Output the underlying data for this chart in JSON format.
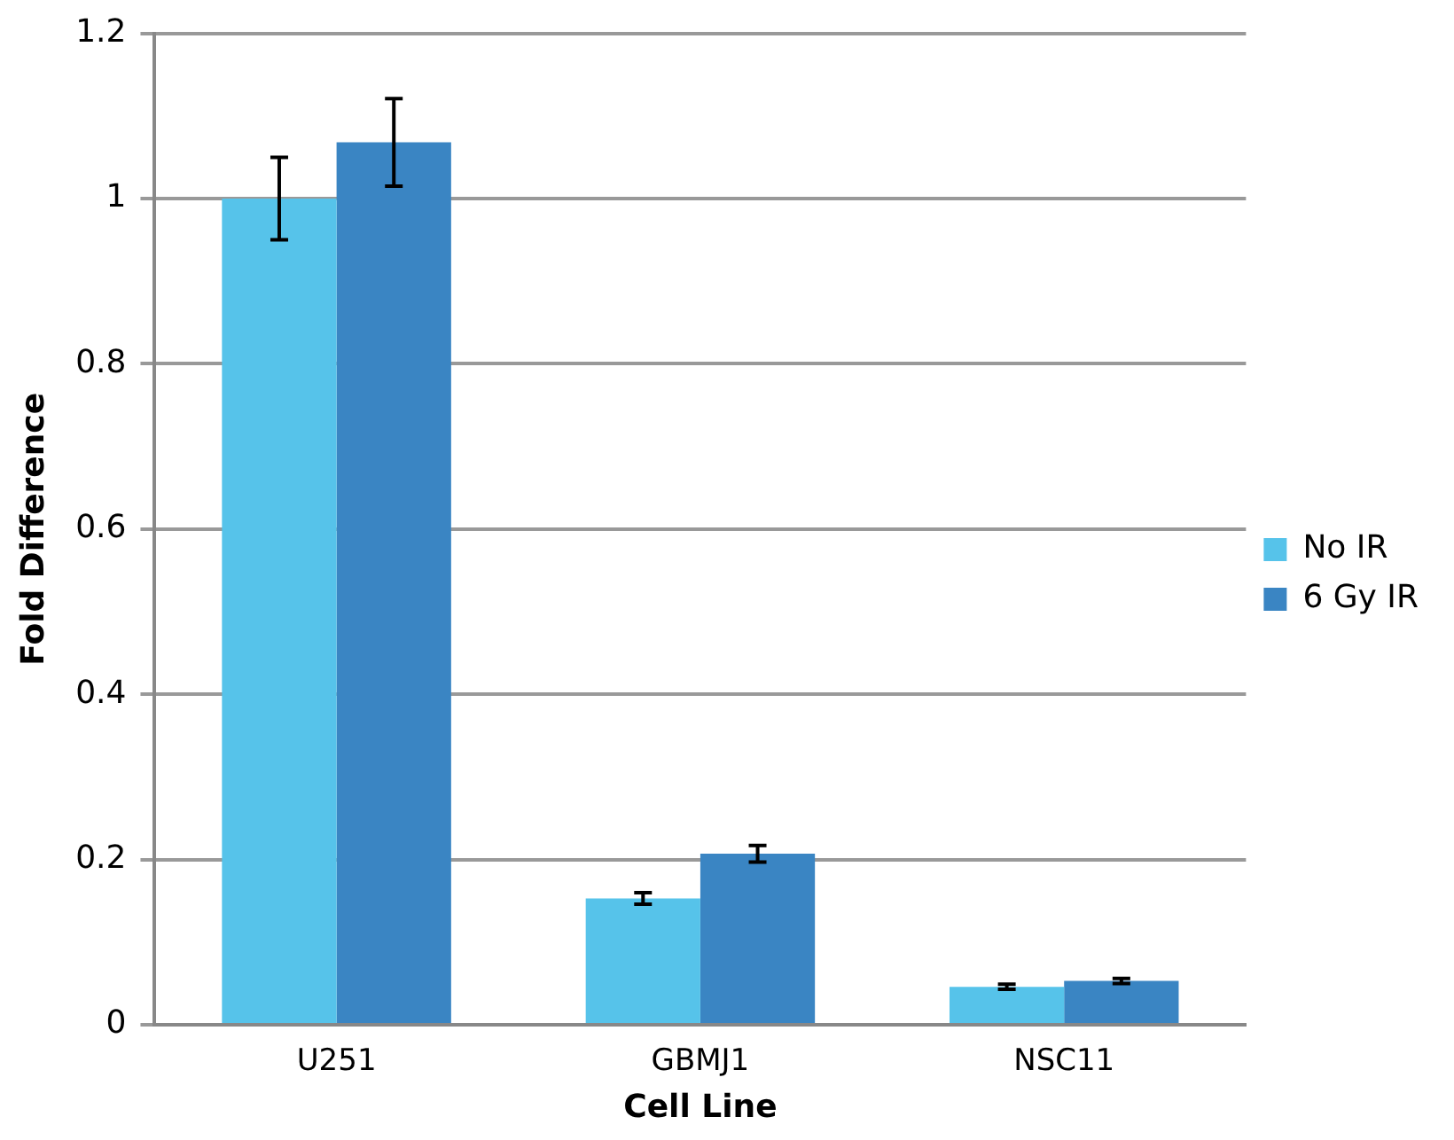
{
  "chart_data": {
    "type": "bar",
    "xlabel": "Cell Line",
    "ylabel": "Fold Difference",
    "categories": [
      "U251",
      "GBMJ1",
      "NSC11"
    ],
    "series": [
      {
        "name": "No IR",
        "color": "#56c3ea",
        "values": [
          1.0,
          0.153,
          0.046
        ],
        "errors": [
          0.05,
          0.007,
          0.003
        ]
      },
      {
        "name": "6 Gy IR",
        "color": "#3a85c3",
        "values": [
          1.068,
          0.207,
          0.053
        ],
        "errors": [
          0.053,
          0.01,
          0.003
        ]
      }
    ],
    "ylim": [
      0,
      1.2
    ],
    "yticks": [
      0,
      0.2,
      0.4,
      0.6,
      0.8,
      1,
      1.2
    ],
    "grid": "y",
    "legend": "right"
  }
}
